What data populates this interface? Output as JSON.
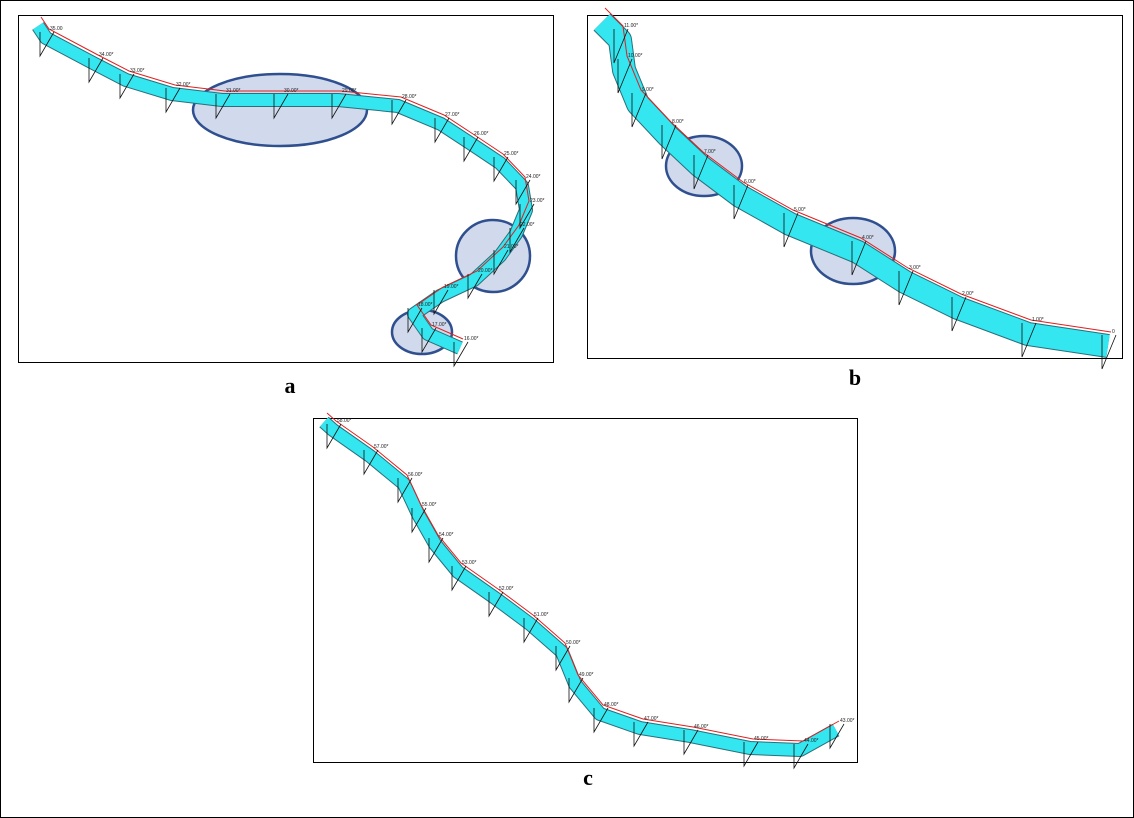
{
  "panels": [
    {
      "label": "a",
      "stations": [
        "35.00",
        "34.00*",
        "33.00*",
        "32.00*",
        "31.00*",
        "30.00*",
        "29.00*",
        "28.00*",
        "27.00*",
        "26.00*",
        "25.00*",
        "24.00*",
        "23.00*",
        "22.00*",
        "21.00*",
        "20.00*",
        "19.00*",
        "18.00*",
        "17.00*",
        "16.00*"
      ]
    },
    {
      "label": "b",
      "stations": [
        "11.00*",
        "10.00*",
        "9.00*",
        "8.00*",
        "7.00*",
        "6.00*",
        "5.00*",
        "4.00*",
        "3.00*",
        "2.00*",
        "1.00*",
        "0"
      ]
    },
    {
      "label": "c",
      "stations": [
        "58.00*",
        "57.00*",
        "56.00*",
        "55.00*",
        "54.00*",
        "53.00*",
        "52.00*",
        "51.00*",
        "50.00*",
        "49.00*",
        "48.00*",
        "47.00*",
        "46.00*",
        "45.00*",
        "44.00*",
        "43.00*"
      ]
    }
  ]
}
